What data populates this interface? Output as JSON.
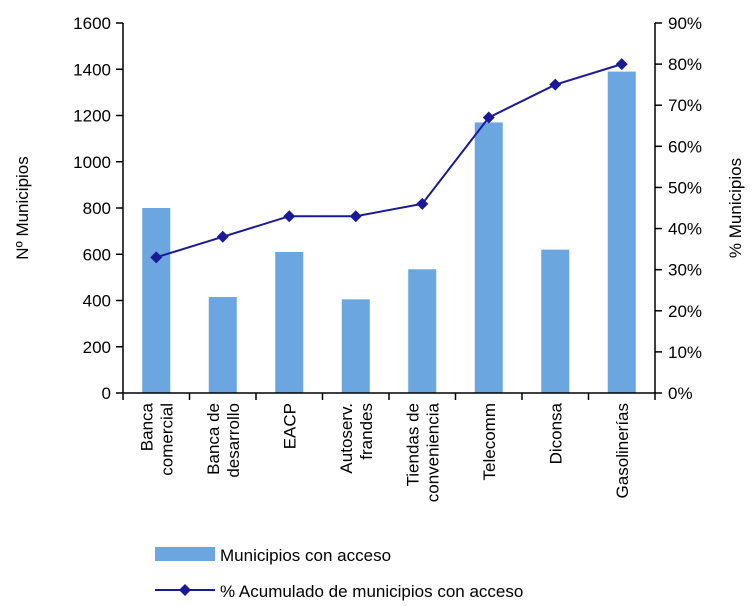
{
  "chart_data": {
    "type": "bar",
    "categories": [
      [
        "Banca",
        "comercial"
      ],
      [
        "Banca de",
        "desarrollo"
      ],
      [
        "EACP"
      ],
      [
        "Autoserv.",
        "frandes"
      ],
      [
        "Tiendas de",
        "conveniencia"
      ],
      [
        "Telecomm"
      ],
      [
        "Diconsa"
      ],
      [
        "Gasolinerías"
      ]
    ],
    "series": [
      {
        "name": "Municipios con acceso",
        "type": "bar",
        "axis": "left",
        "color": "#6CA6E0",
        "values": [
          800,
          415,
          610,
          405,
          535,
          1170,
          620,
          1390
        ]
      },
      {
        "name": "% Acumulado de municipios con acceso",
        "type": "line",
        "axis": "right",
        "color": "#1A1A99",
        "marker": "diamond",
        "values": [
          33,
          38,
          43,
          43,
          46,
          67,
          75,
          80
        ]
      }
    ],
    "ylabel": "Nº Municipios",
    "y2label": "% Municipios",
    "ylim": [
      0,
      1600
    ],
    "yticks": [
      0,
      200,
      400,
      600,
      800,
      1000,
      1200,
      1400,
      1600
    ],
    "y2lim": [
      0,
      90
    ],
    "y2ticks": [
      "0%",
      "10%",
      "20%",
      "30%",
      "40%",
      "50%",
      "60%",
      "70%",
      "80%",
      "90%"
    ],
    "grid": false,
    "legend": "bottom"
  }
}
